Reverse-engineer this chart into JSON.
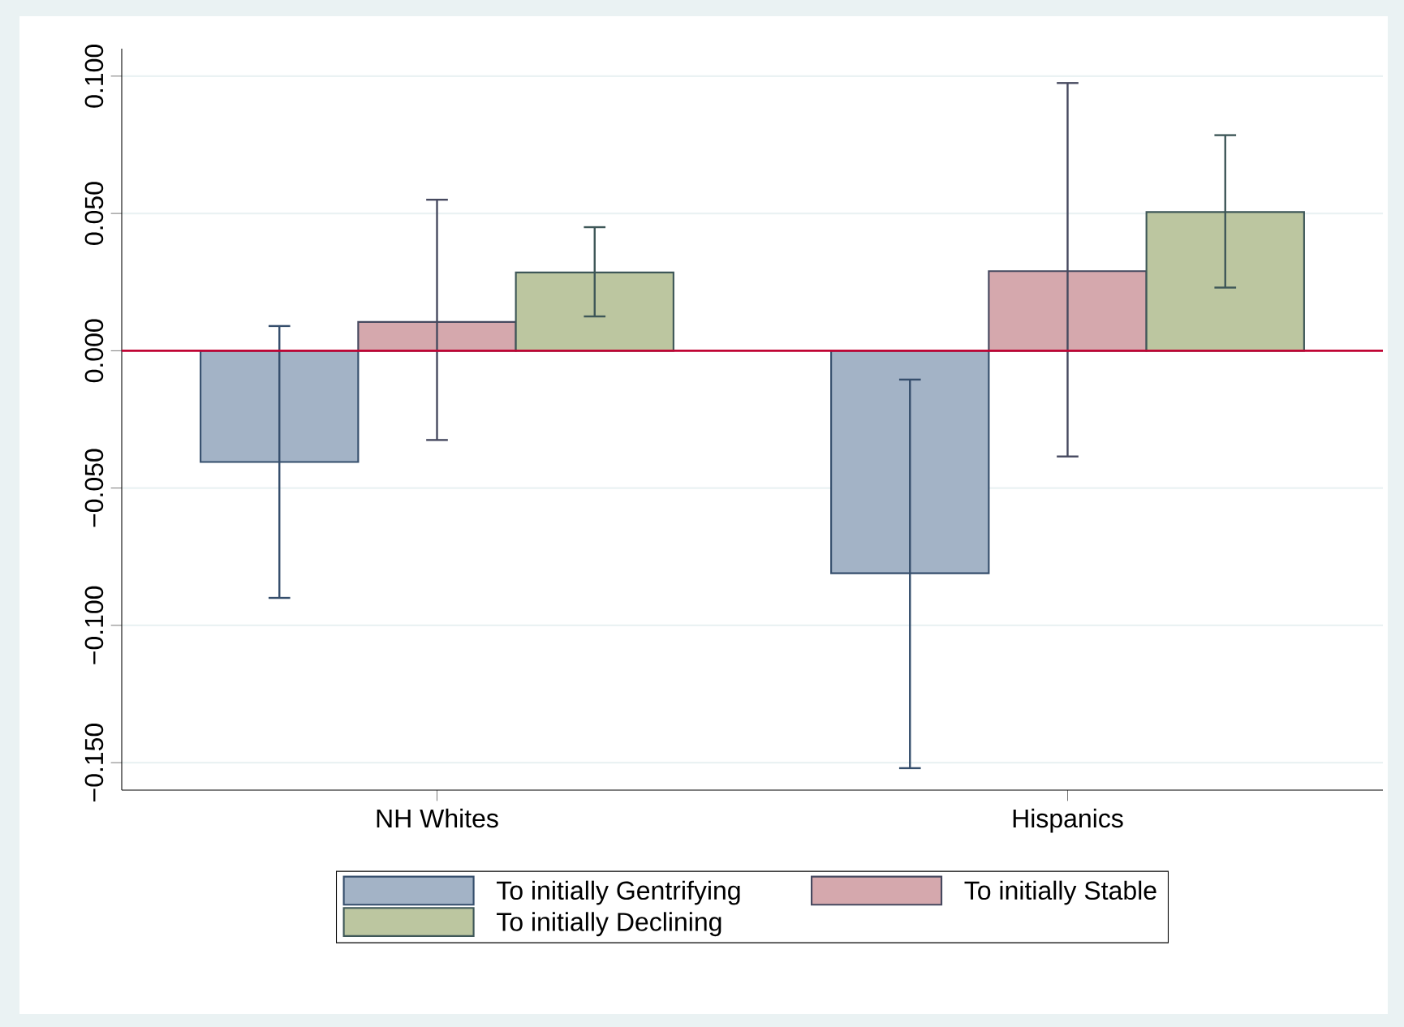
{
  "chart_data": {
    "type": "bar",
    "categories": [
      "NH Whites",
      "Hispanics"
    ],
    "series": [
      {
        "name": "To initially Gentrifying",
        "color": "#a3b3c6",
        "values": [
          -0.0405,
          -0.081
        ],
        "errors": [
          [
            -0.09,
            0.009
          ],
          [
            -0.152,
            -0.0105
          ]
        ]
      },
      {
        "name": "To initially Stable",
        "color": "#d5a8ad",
        "values": [
          0.0105,
          0.029
        ],
        "errors": [
          [
            -0.0325,
            0.055
          ],
          [
            -0.0385,
            0.0975
          ]
        ]
      },
      {
        "name": "To initially Declining",
        "color": "#bcc6a0",
        "values": [
          0.0285,
          0.0505
        ],
        "errors": [
          [
            0.0125,
            0.045
          ],
          [
            0.023,
            0.0785
          ]
        ]
      }
    ],
    "ylim": [
      -0.16,
      0.11
    ],
    "yticks": [
      {
        "value": -0.15,
        "label": "−0.150"
      },
      {
        "value": -0.1,
        "label": "−0.100"
      },
      {
        "value": -0.05,
        "label": "−0.050"
      },
      {
        "value": 0,
        "label": "0.000"
      },
      {
        "value": 0.05,
        "label": "0.050"
      },
      {
        "value": 0.1,
        "label": "0.100"
      }
    ],
    "ref_lines": [
      {
        "axis": "y",
        "value": 0,
        "color": "#c10534"
      }
    ],
    "grid": "y",
    "legend": "bottom"
  }
}
